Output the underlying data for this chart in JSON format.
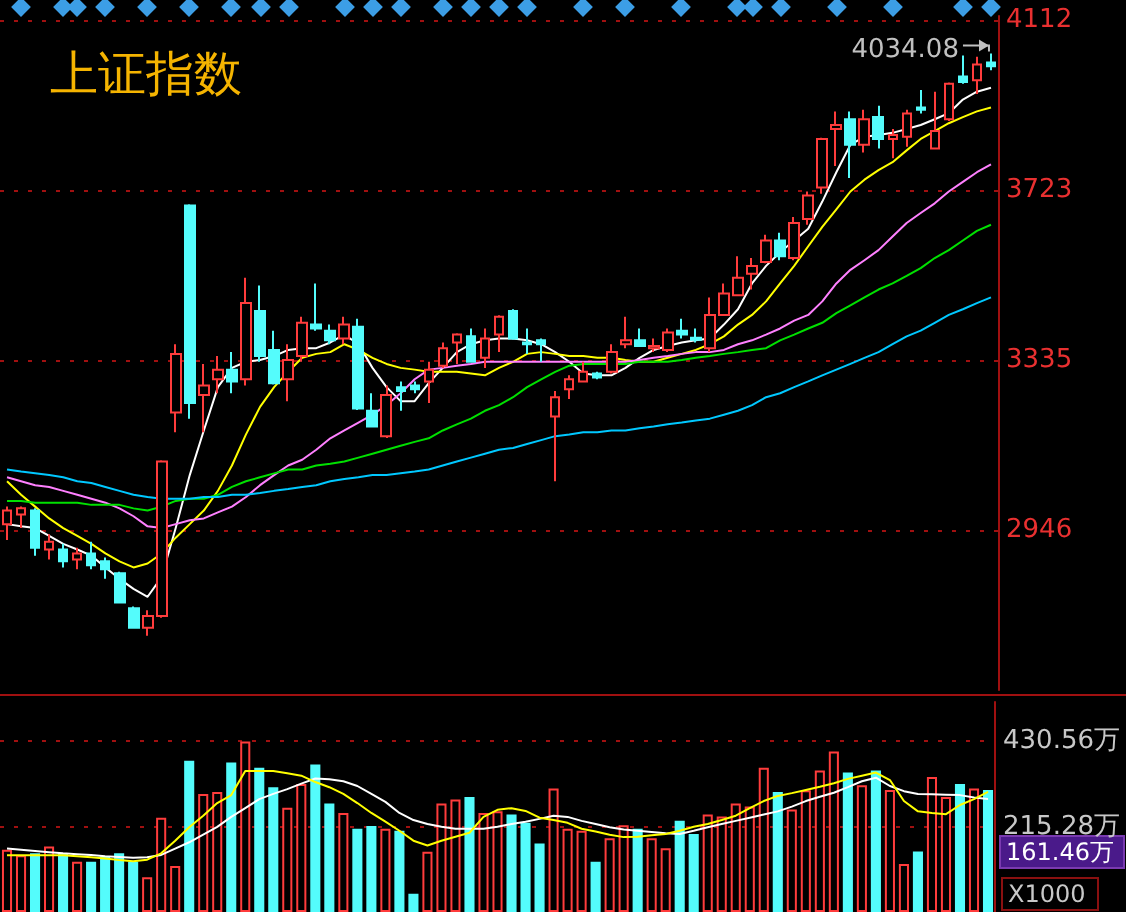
{
  "chart_data": [
    {
      "type": "candlestick",
      "title": "上证指数",
      "categories": [
        null,
        null,
        null,
        null,
        null,
        null,
        null,
        null,
        null,
        null,
        null,
        null,
        null,
        null,
        null,
        null,
        null,
        null,
        null,
        null,
        null,
        null,
        null,
        null,
        null,
        null,
        null,
        null,
        null,
        null,
        null,
        null,
        null,
        null,
        null,
        null,
        null,
        null,
        null,
        null,
        null,
        null,
        null,
        null,
        null,
        null,
        null,
        null,
        null,
        null,
        null,
        null,
        null,
        null,
        null,
        null,
        null,
        null,
        null,
        null,
        null,
        null,
        null,
        null,
        null,
        null,
        null,
        null,
        null,
        null,
        null
      ],
      "ohlc": [
        [
          2959,
          2999,
          2923,
          2990
        ],
        [
          2981,
          2999,
          2950,
          2995
        ],
        [
          2990,
          2995,
          2887,
          2905
        ],
        [
          2901,
          2936,
          2878,
          2919
        ],
        [
          2901,
          2914,
          2860,
          2874
        ],
        [
          2878,
          2905,
          2856,
          2892
        ],
        [
          2892,
          2919,
          2856,
          2865
        ],
        [
          2874,
          2883,
          2834,
          2856
        ],
        [
          2847,
          2850,
          2778,
          2780
        ],
        [
          2767,
          2771,
          2722,
          2722
        ],
        [
          2722,
          2762,
          2704,
          2749
        ],
        [
          2749,
          3105,
          2745,
          3102
        ],
        [
          3214,
          3370,
          3169,
          3348
        ],
        [
          3687,
          3690,
          3200,
          3236
        ],
        [
          3254,
          3325,
          3169,
          3276
        ],
        [
          3290,
          3343,
          3258,
          3312
        ],
        [
          3312,
          3352,
          3258,
          3285
        ],
        [
          3290,
          3522,
          3276,
          3464
        ],
        [
          3446,
          3504,
          3330,
          3343
        ],
        [
          3357,
          3401,
          3278,
          3281
        ],
        [
          3290,
          3370,
          3240,
          3334
        ],
        [
          3343,
          3433,
          3330,
          3419
        ],
        [
          3415,
          3509,
          3401,
          3406
        ],
        [
          3401,
          3415,
          3370,
          3379
        ],
        [
          3383,
          3433,
          3370,
          3415
        ],
        [
          3410,
          3428,
          3220,
          3223
        ],
        [
          3218,
          3258,
          3180,
          3182
        ],
        [
          3160,
          3276,
          3156,
          3254
        ],
        [
          3272,
          3285,
          3218,
          3263
        ],
        [
          3276,
          3285,
          3258,
          3267
        ],
        [
          3285,
          3330,
          3236,
          3312
        ],
        [
          3321,
          3374,
          3316,
          3361
        ],
        [
          3374,
          3395,
          3325,
          3392
        ],
        [
          3388,
          3406,
          3328,
          3330
        ],
        [
          3339,
          3406,
          3316,
          3383
        ],
        [
          3392,
          3436,
          3352,
          3433
        ],
        [
          3446,
          3450,
          3380,
          3383
        ],
        [
          3374,
          3406,
          3348,
          3370
        ],
        [
          3379,
          3383,
          3330,
          3370
        ],
        [
          3205,
          3263,
          3057,
          3249
        ],
        [
          3267,
          3299,
          3245,
          3290
        ],
        [
          3285,
          3330,
          3283,
          3307
        ],
        [
          3303,
          3307,
          3290,
          3294
        ],
        [
          3307,
          3370,
          3303,
          3352
        ],
        [
          3370,
          3433,
          3361,
          3379
        ],
        [
          3379,
          3406,
          3364,
          3366
        ],
        [
          3361,
          3383,
          3352,
          3366
        ],
        [
          3357,
          3406,
          3352,
          3397
        ],
        [
          3401,
          3428,
          3383,
          3392
        ],
        [
          3385,
          3406,
          3374,
          3380
        ],
        [
          3361,
          3477,
          3352,
          3437
        ],
        [
          3437,
          3509,
          3435,
          3486
        ],
        [
          3482,
          3571,
          3480,
          3522
        ],
        [
          3531,
          3567,
          3495,
          3549
        ],
        [
          3558,
          3620,
          3555,
          3607
        ],
        [
          3607,
          3625,
          3562,
          3571
        ],
        [
          3567,
          3661,
          3562,
          3647
        ],
        [
          3656,
          3719,
          3643,
          3710
        ],
        [
          3728,
          3842,
          3714,
          3839
        ],
        [
          3862,
          3902,
          3777,
          3871
        ],
        [
          3884,
          3902,
          3750,
          3826
        ],
        [
          3826,
          3906,
          3808,
          3884
        ],
        [
          3889,
          3915,
          3817,
          3839
        ],
        [
          3839,
          3862,
          3795,
          3848
        ],
        [
          3844,
          3906,
          3821,
          3897
        ],
        [
          3911,
          3951,
          3897,
          3906
        ],
        [
          3817,
          3947,
          3815,
          3857
        ],
        [
          3884,
          3968,
          3880,
          3965
        ],
        [
          3982,
          4030,
          3965,
          3969
        ],
        [
          3973,
          4027,
          3942,
          4009
        ],
        [
          4014,
          4034.08,
          3996,
          4005
        ]
      ],
      "colors": [
        "#ff3c3c",
        "#ff3c3c",
        "#54fcfc",
        "#ff3c3c",
        "#54fcfc",
        "#ff3c3c",
        "#54fcfc",
        "#54fcfc",
        "#54fcfc",
        "#54fcfc",
        "#ff3c3c",
        "#ff3c3c",
        "#ff3c3c",
        "#54fcfc",
        "#ff3c3c",
        "#ff3c3c",
        "#54fcfc",
        "#ff3c3c",
        "#54fcfc",
        "#54fcfc",
        "#ff3c3c",
        "#ff3c3c",
        "#54fcfc",
        "#54fcfc",
        "#ff3c3c",
        "#54fcfc",
        "#54fcfc",
        "#ff3c3c",
        "#54fcfc",
        "#54fcfc",
        "#ff3c3c",
        "#ff3c3c",
        "#ff3c3c",
        "#54fcfc",
        "#ff3c3c",
        "#ff3c3c",
        "#54fcfc",
        "#54fcfc",
        "#54fcfc",
        "#ff3c3c",
        "#ff3c3c",
        "#ff3c3c",
        "#54fcfc",
        "#ff3c3c",
        "#ff3c3c",
        "#54fcfc",
        "#ff3c3c",
        "#ff3c3c",
        "#54fcfc",
        "#54fcfc",
        "#ff3c3c",
        "#ff3c3c",
        "#ff3c3c",
        "#ff3c3c",
        "#ff3c3c",
        "#54fcfc",
        "#ff3c3c",
        "#ff3c3c",
        "#ff3c3c",
        "#ff3c3c",
        "#54fcfc",
        "#ff3c3c",
        "#54fcfc",
        "#ff3c3c",
        "#ff3c3c",
        "#54fcfc",
        "#ff3c3c",
        "#ff3c3c",
        "#54fcfc",
        "#ff3c3c",
        "#54fcfc"
      ],
      "series": [
        {
          "type": "line",
          "color": "#ffffff",
          "values": [
            2959,
            2954,
            2950,
            2932,
            2914,
            2901,
            2887,
            2860,
            2834,
            2811,
            2793,
            2838,
            2950,
            3071,
            3173,
            3272,
            3316,
            3330,
            3334,
            3343,
            3357,
            3361,
            3361,
            3374,
            3392,
            3370,
            3316,
            3272,
            3240,
            3240,
            3281,
            3316,
            3352,
            3370,
            3379,
            3383,
            3383,
            3379,
            3370,
            3352,
            3330,
            3303,
            3299,
            3299,
            3316,
            3339,
            3357,
            3366,
            3374,
            3379,
            3383,
            3415,
            3450,
            3509,
            3549,
            3580,
            3607,
            3634,
            3696,
            3763,
            3826,
            3844,
            3848,
            3853,
            3862,
            3871,
            3884,
            3898,
            3929,
            3947,
            3956
          ]
        },
        {
          "type": "line",
          "color": "#ffff00",
          "values": [
            3057,
            3026,
            2999,
            2972,
            2950,
            2932,
            2914,
            2892,
            2874,
            2860,
            2869,
            2892,
            2928,
            2959,
            2990,
            3035,
            3093,
            3164,
            3227,
            3272,
            3307,
            3339,
            3348,
            3352,
            3370,
            3357,
            3339,
            3325,
            3316,
            3312,
            3307,
            3307,
            3307,
            3303,
            3299,
            3316,
            3330,
            3348,
            3352,
            3348,
            3343,
            3343,
            3339,
            3339,
            3334,
            3330,
            3330,
            3339,
            3348,
            3357,
            3370,
            3388,
            3415,
            3437,
            3468,
            3509,
            3549,
            3594,
            3638,
            3678,
            3719,
            3746,
            3768,
            3786,
            3813,
            3839,
            3857,
            3875,
            3889,
            3902,
            3911
          ]
        },
        {
          "type": "line",
          "color": "#ff80ff",
          "values": [
            3066,
            3057,
            3048,
            3044,
            3035,
            3026,
            3017,
            3008,
            2995,
            2977,
            2954,
            2950,
            2959,
            2968,
            2972,
            2986,
            2999,
            3021,
            3048,
            3071,
            3093,
            3106,
            3129,
            3155,
            3173,
            3191,
            3209,
            3231,
            3258,
            3290,
            3312,
            3316,
            3321,
            3325,
            3330,
            3330,
            3330,
            3330,
            3330,
            3330,
            3330,
            3330,
            3330,
            3330,
            3330,
            3334,
            3339,
            3343,
            3348,
            3352,
            3352,
            3357,
            3370,
            3379,
            3392,
            3406,
            3424,
            3437,
            3468,
            3509,
            3540,
            3562,
            3585,
            3616,
            3647,
            3670,
            3692,
            3719,
            3741,
            3763,
            3781
          ]
        },
        {
          "type": "line",
          "color": "#00e000",
          "values": [
            3012,
            3012,
            3008,
            3008,
            3008,
            3008,
            3003,
            3003,
            3003,
            2995,
            2990,
            2999,
            3012,
            3017,
            3017,
            3026,
            3044,
            3057,
            3066,
            3075,
            3084,
            3084,
            3093,
            3097,
            3102,
            3111,
            3120,
            3129,
            3138,
            3147,
            3155,
            3173,
            3187,
            3200,
            3218,
            3231,
            3249,
            3272,
            3290,
            3307,
            3321,
            3325,
            3325,
            3325,
            3325,
            3330,
            3330,
            3330,
            3334,
            3339,
            3343,
            3348,
            3352,
            3357,
            3361,
            3379,
            3392,
            3406,
            3419,
            3441,
            3459,
            3477,
            3495,
            3509,
            3526,
            3544,
            3567,
            3585,
            3607,
            3629,
            3643
          ]
        },
        {
          "type": "line",
          "color": "#00c8ff",
          "values": [
            3084,
            3079,
            3075,
            3071,
            3066,
            3057,
            3053,
            3044,
            3035,
            3026,
            3021,
            3017,
            3017,
            3017,
            3021,
            3021,
            3026,
            3026,
            3030,
            3035,
            3039,
            3044,
            3048,
            3057,
            3062,
            3066,
            3071,
            3071,
            3075,
            3079,
            3084,
            3093,
            3102,
            3111,
            3120,
            3129,
            3133,
            3142,
            3151,
            3160,
            3164,
            3169,
            3169,
            3173,
            3173,
            3178,
            3182,
            3187,
            3191,
            3196,
            3200,
            3209,
            3218,
            3231,
            3249,
            3258,
            3272,
            3285,
            3299,
            3312,
            3325,
            3339,
            3352,
            3370,
            3388,
            3401,
            3419,
            3437,
            3450,
            3464,
            3477
          ]
        }
      ],
      "ylim": [
        2580,
        4120
      ],
      "yticks": [
        2946,
        3335,
        3723,
        4112
      ],
      "grid": "y",
      "tick_labels": "y",
      "marker": "none",
      "line_style": "solid",
      "annotations": [
        "4034.08"
      ]
    },
    {
      "type": "bar",
      "categories": [
        null,
        null,
        null,
        null,
        null,
        null,
        null,
        null,
        null,
        null,
        null,
        null,
        null,
        null,
        null,
        null,
        null,
        null,
        null,
        null,
        null,
        null,
        null,
        null,
        null,
        null,
        null,
        null,
        null,
        null,
        null,
        null,
        null,
        null,
        null,
        null,
        null,
        null,
        null,
        null,
        null,
        null,
        null,
        null,
        null,
        null,
        null,
        null,
        null,
        null,
        null,
        null,
        null,
        null,
        null,
        null,
        null,
        null,
        null,
        null,
        null,
        null,
        null,
        null,
        null,
        null,
        null,
        null,
        null,
        null,
        null
      ],
      "series": [
        {
          "type": "bar",
          "values": [
            157,
            143,
            148,
            165,
            148,
            127,
            127,
            140,
            148,
            127,
            88,
            238,
            116,
            382,
            298,
            303,
            377,
            430,
            364,
            315,
            263,
            323,
            372,
            274,
            250,
            210,
            217,
            210,
            205,
            46,
            152,
            274,
            284,
            290,
            250,
            254,
            246,
            225,
            173,
            312,
            210,
            205,
            127,
            186,
            219,
            210,
            186,
            161,
            230,
            197,
            246,
            241,
            274,
            266,
            364,
            303,
            259,
            307,
            357,
            405,
            352,
            320,
            357,
            308,
            121,
            153,
            341,
            290,
            323,
            312,
            308
          ],
          "colors": [
            "#ff3c3c",
            "#ff3c3c",
            "#54fcfc",
            "#ff3c3c",
            "#54fcfc",
            "#ff3c3c",
            "#54fcfc",
            "#54fcfc",
            "#54fcfc",
            "#54fcfc",
            "#ff3c3c",
            "#ff3c3c",
            "#ff3c3c",
            "#54fcfc",
            "#ff3c3c",
            "#ff3c3c",
            "#54fcfc",
            "#ff3c3c",
            "#54fcfc",
            "#54fcfc",
            "#ff3c3c",
            "#ff3c3c",
            "#54fcfc",
            "#54fcfc",
            "#ff3c3c",
            "#54fcfc",
            "#54fcfc",
            "#ff3c3c",
            "#54fcfc",
            "#54fcfc",
            "#ff3c3c",
            "#ff3c3c",
            "#ff3c3c",
            "#54fcfc",
            "#ff3c3c",
            "#ff3c3c",
            "#54fcfc",
            "#54fcfc",
            "#54fcfc",
            "#ff3c3c",
            "#ff3c3c",
            "#ff3c3c",
            "#54fcfc",
            "#ff3c3c",
            "#ff3c3c",
            "#54fcfc",
            "#ff3c3c",
            "#ff3c3c",
            "#54fcfc",
            "#54fcfc",
            "#ff3c3c",
            "#ff3c3c",
            "#ff3c3c",
            "#ff3c3c",
            "#ff3c3c",
            "#54fcfc",
            "#ff3c3c",
            "#ff3c3c",
            "#ff3c3c",
            "#ff3c3c",
            "#54fcfc",
            "#ff3c3c",
            "#54fcfc",
            "#ff3c3c",
            "#ff3c3c",
            "#54fcfc",
            "#ff3c3c",
            "#ff3c3c",
            "#54fcfc",
            "#ff3c3c",
            "#54fcfc"
          ]
        },
        {
          "type": "line",
          "color": "#ffffff",
          "values": [
            160,
            157,
            154,
            151,
            148,
            146,
            144,
            141,
            139,
            137,
            138,
            144,
            160,
            176,
            195,
            215,
            240,
            262,
            285,
            298,
            310,
            324,
            337,
            335,
            330,
            318,
            298,
            278,
            250,
            232,
            222,
            215,
            210,
            210,
            210,
            215,
            222,
            228,
            235,
            243,
            240,
            230,
            222,
            214,
            208,
            205,
            202,
            199,
            197,
            205,
            214,
            222,
            230,
            238,
            246,
            254,
            266,
            280,
            291,
            301,
            315,
            330,
            339,
            318,
            305,
            298,
            297,
            296,
            295,
            289,
            285
          ]
        },
        {
          "type": "line",
          "color": "#ffff00",
          "values": [
            143,
            143,
            143,
            143,
            143,
            141,
            138,
            135,
            131,
            128,
            132,
            148,
            180,
            214,
            243,
            275,
            295,
            356,
            356,
            356,
            350,
            344,
            328,
            315,
            298,
            275,
            250,
            228,
            205,
            180,
            168,
            180,
            190,
            200,
            240,
            258,
            262,
            255,
            238,
            232,
            225,
            210,
            203,
            195,
            189,
            190,
            194,
            197,
            205,
            215,
            222,
            232,
            243,
            262,
            280,
            293,
            300,
            308,
            316,
            325,
            336,
            344,
            352,
            333,
            280,
            254,
            250,
            247,
            270,
            285,
            303
          ]
        }
      ],
      "ylim": [
        0,
        530
      ],
      "yticks": [
        {
          "value": 215.28,
          "label": "215.28万"
        },
        {
          "value": 430.56,
          "label": "430.56万"
        }
      ],
      "grid": "y",
      "tick_labels": "y",
      "marker": "none",
      "line_style": "solid",
      "annotations": [
        "161.46万",
        "X1000"
      ]
    }
  ]
}
